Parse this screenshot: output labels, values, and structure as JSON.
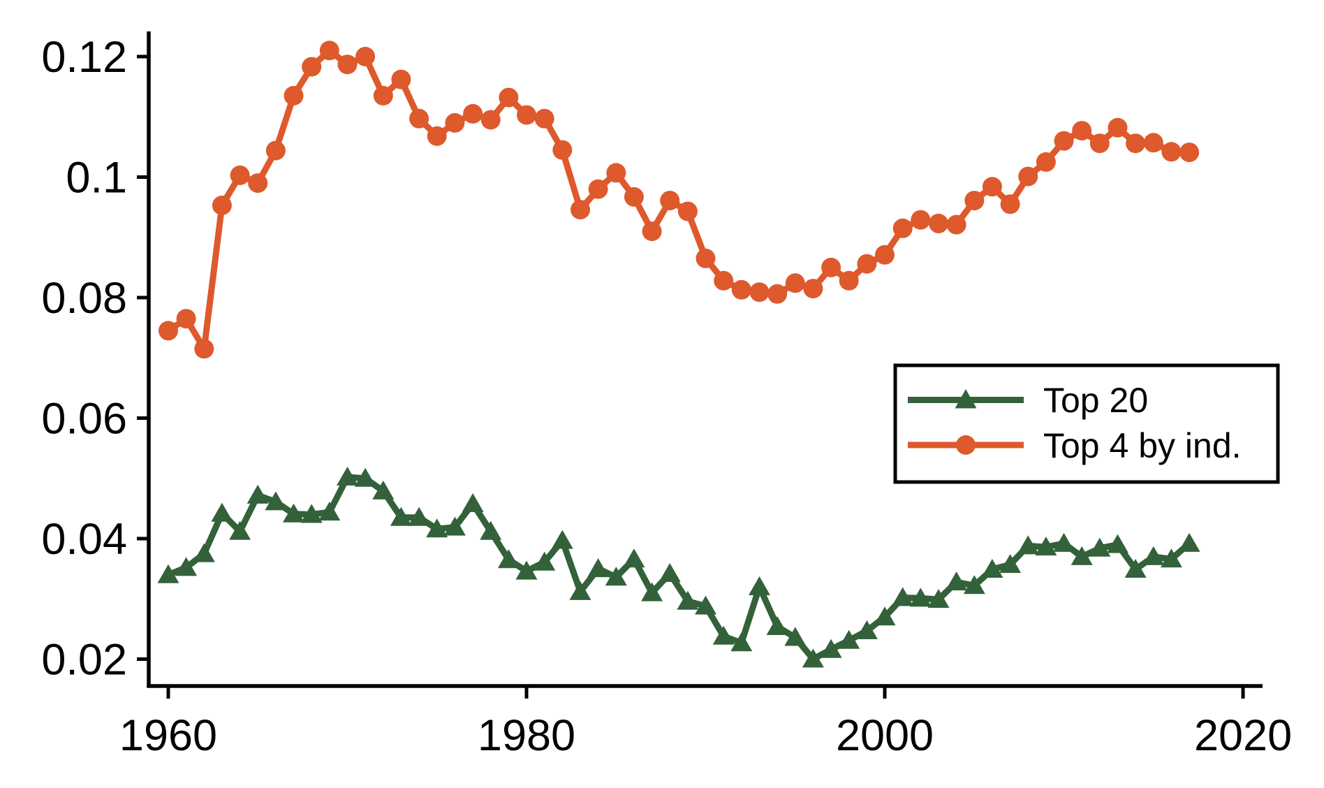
{
  "chart_data": {
    "type": "line",
    "title": "",
    "xlabel": "",
    "ylabel": "",
    "grid": false,
    "background_color": "#ffffff",
    "axis_color": "#000000",
    "xlim": [
      1958.87,
      2021.09
    ],
    "ylim": [
      0.01554,
      0.12417
    ],
    "x_ticks": {
      "values": [
        1960,
        1980,
        2000,
        2020
      ],
      "labels": [
        "1960",
        "1980",
        "2000",
        "2020"
      ]
    },
    "y_ticks": {
      "values": [
        0.12,
        0.1,
        0.08,
        0.06,
        0.04,
        0.02
      ],
      "labels": [
        "0.12",
        "0.1",
        "0.08",
        "0.06",
        "0.04",
        "0.02"
      ]
    },
    "x": [
      1960,
      1961,
      1962,
      1963,
      1964,
      1965,
      1966,
      1967,
      1968,
      1969,
      1970,
      1971,
      1972,
      1973,
      1974,
      1975,
      1976,
      1977,
      1978,
      1979,
      1980,
      1981,
      1982,
      1983,
      1984,
      1985,
      1986,
      1987,
      1988,
      1989,
      1990,
      1991,
      1992,
      1993,
      1994,
      1995,
      1996,
      1997,
      1998,
      1999,
      2000,
      2001,
      2002,
      2003,
      2004,
      2005,
      2006,
      2007,
      2008,
      2009,
      2010,
      2011,
      2012,
      2013,
      2014,
      2015,
      2016,
      2017
    ],
    "series": [
      {
        "name": "Top 20",
        "marker": "triangle",
        "color": "#33613A",
        "values": [
          0.034,
          0.0352,
          0.0375,
          0.0442,
          0.0412,
          0.0472,
          0.0461,
          0.0441,
          0.044,
          0.0444,
          0.0502,
          0.05,
          0.0479,
          0.0435,
          0.0435,
          0.0416,
          0.0419,
          0.0458,
          0.0412,
          0.0365,
          0.0346,
          0.0361,
          0.0397,
          0.0312,
          0.035,
          0.0336,
          0.0366,
          0.031,
          0.0342,
          0.0296,
          0.0288,
          0.0238,
          0.0227,
          0.032,
          0.0254,
          0.0236,
          0.02,
          0.0216,
          0.0231,
          0.0247,
          0.027,
          0.0302,
          0.0301,
          0.0299,
          0.0328,
          0.0322,
          0.0349,
          0.0357,
          0.0388,
          0.0386,
          0.0392,
          0.037,
          0.0384,
          0.039,
          0.0349,
          0.037,
          0.0366,
          0.0392
        ]
      },
      {
        "name": "Top 4 by ind.",
        "marker": "circle",
        "color": "#DE592C",
        "values": [
          0.0745,
          0.0765,
          0.0715,
          0.0953,
          0.1003,
          0.099,
          0.1044,
          0.1135,
          0.1183,
          0.121,
          0.1187,
          0.12,
          0.1135,
          0.1162,
          0.1097,
          0.1068,
          0.109,
          0.1105,
          0.1095,
          0.1132,
          0.1103,
          0.1097,
          0.1045,
          0.0946,
          0.098,
          0.1007,
          0.0967,
          0.091,
          0.0961,
          0.0943,
          0.0865,
          0.0828,
          0.0813,
          0.0809,
          0.0806,
          0.0824,
          0.0815,
          0.085,
          0.0828,
          0.0856,
          0.0871,
          0.0915,
          0.0929,
          0.0923,
          0.0921,
          0.0961,
          0.0984,
          0.0955,
          0.1001,
          0.1025,
          0.106,
          0.1077,
          0.1056,
          0.1082,
          0.1056,
          0.1057,
          0.1042,
          0.1041
        ]
      }
    ],
    "legend_position": "inside-middle-right",
    "legend": [
      "Top 20",
      "Top 4 by ind."
    ]
  }
}
